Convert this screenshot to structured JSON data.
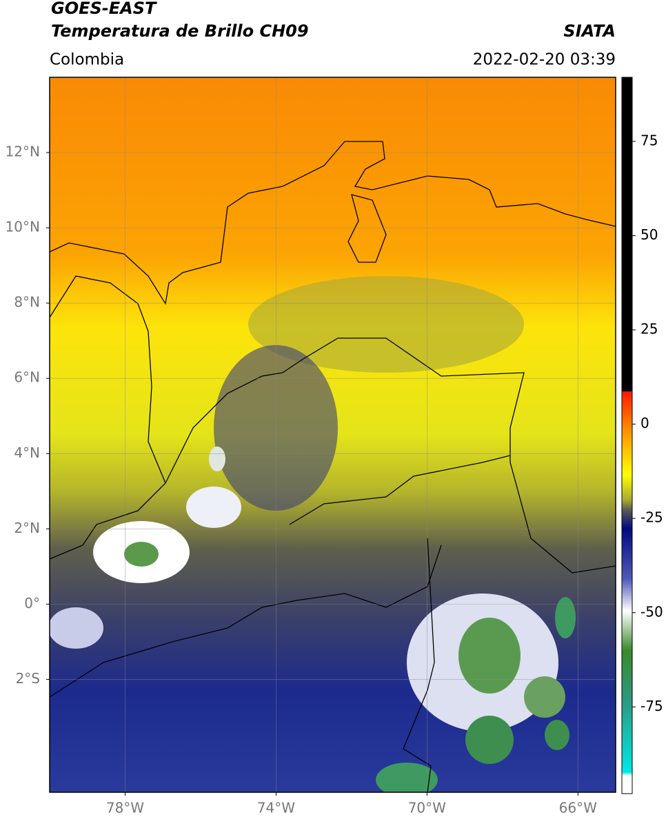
{
  "header": {
    "title": "GOES-EAST",
    "subtitle": "Temperatura de Brillo CH09",
    "source": "SIATA",
    "region": "Colombia",
    "datetime": "2022-02-20 03:39"
  },
  "map": {
    "xlim": [
      -80,
      -65
    ],
    "ylim": [
      -5,
      14
    ],
    "xticks": [
      {
        "value": -78,
        "label": "78°W"
      },
      {
        "value": -74,
        "label": "74°W"
      },
      {
        "value": -70,
        "label": "70°W"
      },
      {
        "value": -66,
        "label": "66°W"
      }
    ],
    "yticks": [
      {
        "value": 12,
        "label": "12°N"
      },
      {
        "value": 10,
        "label": "10°N"
      },
      {
        "value": 8,
        "label": "8°N"
      },
      {
        "value": 6,
        "label": "6°N"
      },
      {
        "value": 4,
        "label": "4°N"
      },
      {
        "value": 2,
        "label": "2°N"
      },
      {
        "value": 0,
        "label": "0°"
      },
      {
        "value": -2,
        "label": "2°S"
      }
    ],
    "grid": true
  },
  "colorbar": {
    "lim": [
      -98,
      92
    ],
    "ticks": [
      75,
      50,
      25,
      0,
      -25,
      -50,
      -75
    ]
  }
}
